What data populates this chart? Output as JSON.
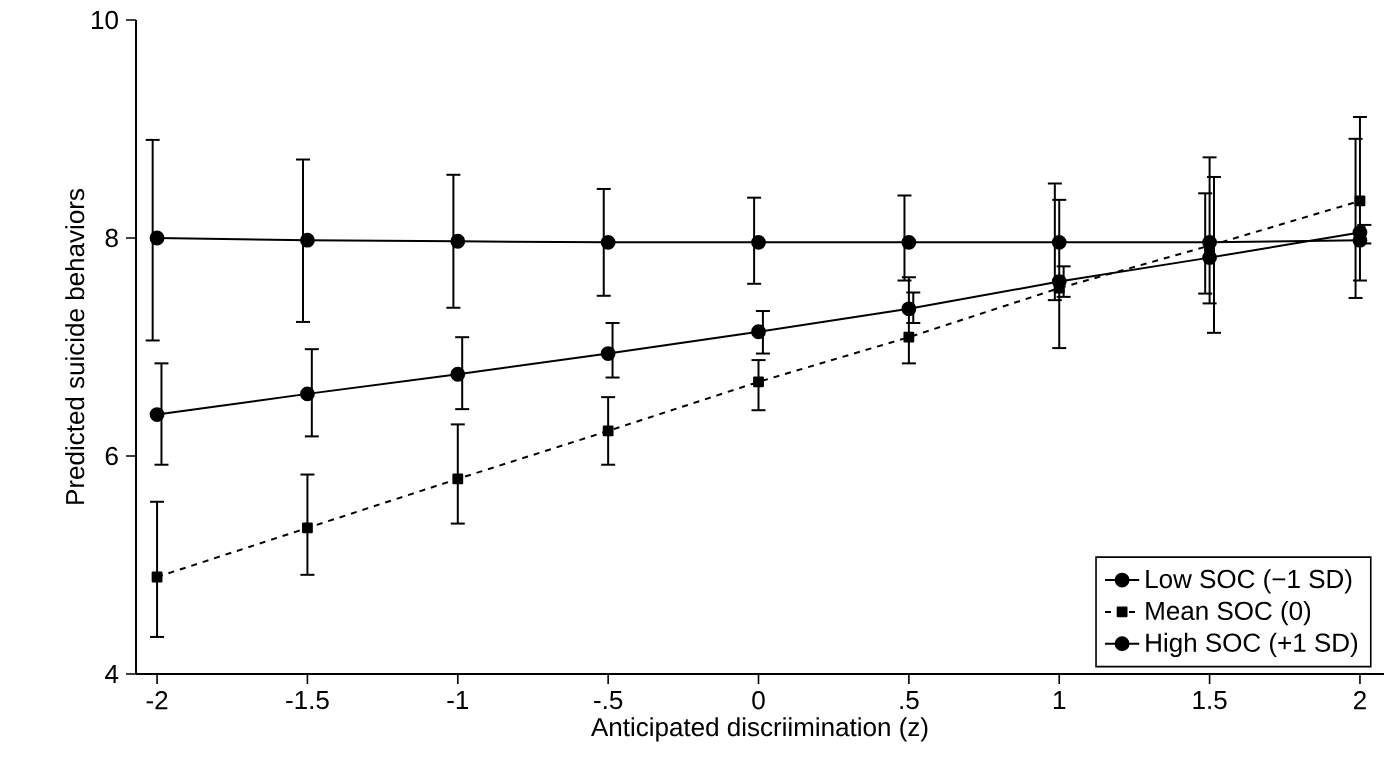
{
  "chart_data": {
    "type": "line",
    "xlabel": "Anticipated discriimination (z)",
    "ylabel": "Predicted suicide behaviors",
    "x": [
      -2,
      -1.5,
      -1,
      -0.5,
      0,
      0.5,
      1,
      1.5,
      2
    ],
    "series": [
      {
        "name": "Low SOC (−1 SD)",
        "color": "#000000",
        "marker": "circle",
        "line_style": "solid",
        "values": [
          8.0,
          7.98,
          7.97,
          7.96,
          7.96,
          7.96,
          7.96,
          7.96,
          7.98
        ],
        "errors": [
          [
            7.06,
            8.9
          ],
          [
            7.23,
            8.72
          ],
          [
            7.36,
            8.58
          ],
          [
            7.47,
            8.45
          ],
          [
            7.58,
            8.37
          ],
          [
            7.61,
            8.39
          ],
          [
            7.43,
            8.5
          ],
          [
            7.49,
            8.41
          ],
          [
            7.45,
            8.91
          ]
        ]
      },
      {
        "name": "Mean SOC (0)",
        "color": "#000000",
        "marker": "square",
        "line_style": "dashed",
        "values": [
          4.89,
          5.34,
          5.79,
          6.23,
          6.68,
          7.09,
          7.54,
          7.93,
          8.34
        ],
        "errors": [
          [
            4.34,
            5.58
          ],
          [
            4.91,
            5.83
          ],
          [
            5.38,
            6.29
          ],
          [
            5.92,
            6.54
          ],
          [
            6.42,
            6.88
          ],
          [
            6.85,
            7.64
          ],
          [
            6.99,
            8.35
          ],
          [
            7.4,
            8.74
          ],
          [
            7.61,
            9.11
          ]
        ]
      },
      {
        "name": "High SOC (+1 SD)",
        "color": "#000000",
        "marker": "circle",
        "line_style": "solid",
        "values": [
          6.38,
          6.57,
          6.75,
          6.94,
          7.14,
          7.35,
          7.6,
          7.82,
          8.05
        ],
        "errors": [
          [
            5.92,
            6.85
          ],
          [
            6.18,
            6.98
          ],
          [
            6.43,
            7.09
          ],
          [
            6.72,
            7.22
          ],
          [
            6.94,
            7.33
          ],
          [
            7.22,
            7.5
          ],
          [
            7.46,
            7.74
          ],
          [
            7.13,
            8.56
          ],
          [
            7.95,
            8.12
          ]
        ]
      }
    ],
    "xlim": [
      -2.07,
      2.08
    ],
    "ylim": [
      4,
      10
    ],
    "xticks": [
      -2,
      -1.5,
      -1,
      {
        "value": -0.5,
        "label": "-.5"
      },
      0,
      {
        "value": 0.5,
        "label": ".5"
      },
      1,
      1.5,
      2
    ],
    "yticks": [
      4,
      6,
      8,
      10
    ],
    "grid": false,
    "legend": "bottom right"
  }
}
